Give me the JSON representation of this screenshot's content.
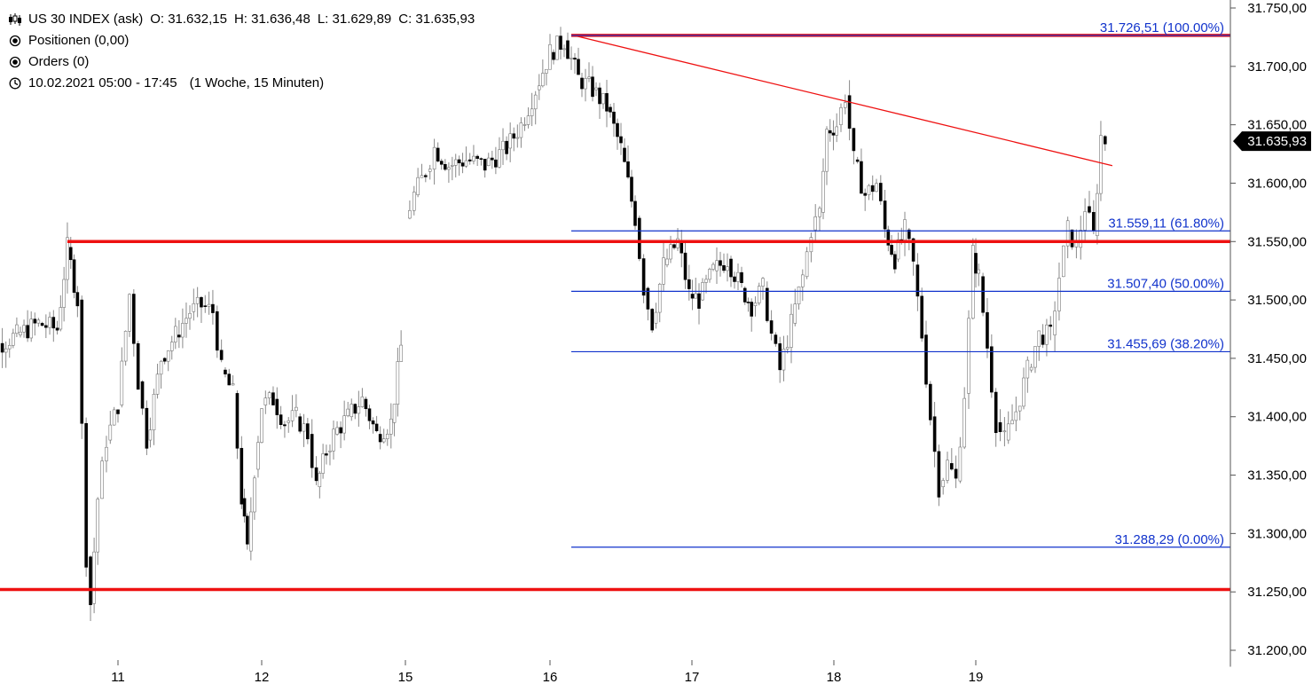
{
  "header": {
    "instrument": "US 30 INDEX (ask)",
    "open": "O: 31.632,15",
    "high": "H: 31.636,48",
    "low": "L: 31.629,89",
    "close": "C: 31.635,93",
    "positions": "Positionen (0,00)",
    "orders": "Orders (0)",
    "period": "10.02.2021 05:00 - 17:45",
    "interval": "(1 Woche, 15 Minuten)",
    "icons": [
      "candlestick-icon",
      "radio-icon",
      "radio-icon",
      "clock-icon"
    ]
  },
  "chart_data": {
    "type": "candlestick",
    "ylim": [
      31190,
      31770
    ],
    "y_ticks": [
      "31.200,00",
      "31.250,00",
      "31.300,00",
      "31.350,00",
      "31.400,00",
      "31.450,00",
      "31.500,00",
      "31.550,00",
      "31.600,00",
      "31.650,00",
      "31.700,00",
      "31.750,00"
    ],
    "y_tick_values": [
      31200,
      31250,
      31300,
      31350,
      31400,
      31450,
      31500,
      31550,
      31600,
      31650,
      31700,
      31750
    ],
    "x_ticks": [
      "11",
      "12",
      "15",
      "16",
      "17",
      "18",
      "19"
    ],
    "current_price": "31.635,93",
    "current_value": 31635.93,
    "colors": {
      "support": "#ee1111",
      "fib": "#1133cc",
      "label": "#1133cc",
      "trend": "#ee1111",
      "bull": "#ffffff",
      "bear": "#000000",
      "wick": "#888888"
    },
    "horizontal_lines": [
      {
        "name": "support-line-31550",
        "value": 31550,
        "from_day": 10.65
      },
      {
        "name": "support-line-31252",
        "value": 31252,
        "from_day": 10.0
      },
      {
        "name": "resistance-line-31726",
        "value": 31726.51,
        "from_day": 16.15
      }
    ],
    "trend_line": {
      "from": [
        16.15,
        31727
      ],
      "to": [
        19.95,
        31615
      ]
    },
    "fibonacci": [
      {
        "value": 31726.51,
        "label": "31.726,51 (100.00%)"
      },
      {
        "value": 31559.11,
        "label": "31.559,11 (61.80%)"
      },
      {
        "value": 31507.4,
        "label": "31.507,40 (50.00%)"
      },
      {
        "value": 31455.69,
        "label": "31.455,69 (38.20%)"
      },
      {
        "value": 31288.29,
        "label": "31.288,29 (0.00%)"
      }
    ],
    "fib_from_day": 16.15,
    "price_path": [
      [
        10.0,
        31470
      ],
      [
        10.15,
        31460
      ],
      [
        10.3,
        31470
      ],
      [
        10.45,
        31480
      ],
      [
        10.58,
        31475
      ],
      [
        10.65,
        31545
      ],
      [
        10.72,
        31500
      ],
      [
        10.78,
        31280
      ],
      [
        10.81,
        31240
      ],
      [
        10.86,
        31330
      ],
      [
        10.92,
        31380
      ],
      [
        11.0,
        31410
      ],
      [
        11.08,
        31505
      ],
      [
        11.14,
        31430
      ],
      [
        11.2,
        31380
      ],
      [
        11.3,
        31450
      ],
      [
        11.4,
        31470
      ],
      [
        11.5,
        31490
      ],
      [
        11.58,
        31495
      ],
      [
        11.66,
        31490
      ],
      [
        11.72,
        31440
      ],
      [
        11.8,
        31420
      ],
      [
        11.86,
        31330
      ],
      [
        11.9,
        31285
      ],
      [
        11.95,
        31355
      ],
      [
        12.0,
        31410
      ],
      [
        12.08,
        31415
      ],
      [
        12.16,
        31395
      ],
      [
        12.24,
        31400
      ],
      [
        12.32,
        31385
      ],
      [
        12.38,
        31340
      ],
      [
        12.45,
        31370
      ],
      [
        12.5,
        31385
      ],
      [
        12.6,
        31400
      ],
      [
        12.7,
        31415
      ],
      [
        12.8,
        31385
      ],
      [
        12.9,
        31395
      ],
      [
        12.97,
        31460
      ],
      [
        15.0,
        31570
      ],
      [
        15.06,
        31590
      ],
      [
        15.14,
        31610
      ],
      [
        15.2,
        31630
      ],
      [
        15.3,
        31615
      ],
      [
        15.42,
        31620
      ],
      [
        15.55,
        31615
      ],
      [
        15.7,
        31630
      ],
      [
        15.8,
        31650
      ],
      [
        15.9,
        31680
      ],
      [
        16.0,
        31712
      ],
      [
        16.1,
        31722
      ],
      [
        16.2,
        31690
      ],
      [
        16.3,
        31680
      ],
      [
        16.4,
        31665
      ],
      [
        16.5,
        31630
      ],
      [
        16.6,
        31570
      ],
      [
        16.66,
        31510
      ],
      [
        16.72,
        31480
      ],
      [
        16.8,
        31530
      ],
      [
        16.9,
        31550
      ],
      [
        16.98,
        31505
      ],
      [
        17.05,
        31500
      ],
      [
        17.15,
        31525
      ],
      [
        17.25,
        31535
      ],
      [
        17.35,
        31510
      ],
      [
        17.42,
        31495
      ],
      [
        17.5,
        31510
      ],
      [
        17.56,
        31470
      ],
      [
        17.62,
        31440
      ],
      [
        17.7,
        31480
      ],
      [
        17.78,
        31520
      ],
      [
        17.84,
        31560
      ],
      [
        17.9,
        31575
      ],
      [
        17.95,
        31645
      ],
      [
        18.02,
        31650
      ],
      [
        18.08,
        31675
      ],
      [
        18.14,
        31620
      ],
      [
        18.22,
        31590
      ],
      [
        18.3,
        31600
      ],
      [
        18.36,
        31560
      ],
      [
        18.43,
        31535
      ],
      [
        18.5,
        31560
      ],
      [
        18.56,
        31530
      ],
      [
        18.62,
        31470
      ],
      [
        18.68,
        31400
      ],
      [
        18.74,
        31340
      ],
      [
        18.8,
        31360
      ],
      [
        18.86,
        31345
      ],
      [
        18.92,
        31420
      ],
      [
        18.98,
        31540
      ],
      [
        19.02,
        31520
      ],
      [
        19.08,
        31460
      ],
      [
        19.14,
        31395
      ],
      [
        19.2,
        31380
      ],
      [
        19.28,
        31405
      ],
      [
        19.36,
        31440
      ],
      [
        19.44,
        31470
      ],
      [
        19.52,
        31470
      ],
      [
        19.58,
        31520
      ],
      [
        19.64,
        31560
      ],
      [
        19.7,
        31545
      ],
      [
        19.76,
        31580
      ],
      [
        19.82,
        31555
      ],
      [
        19.87,
        31640
      ],
      [
        19.9,
        31636
      ]
    ]
  }
}
